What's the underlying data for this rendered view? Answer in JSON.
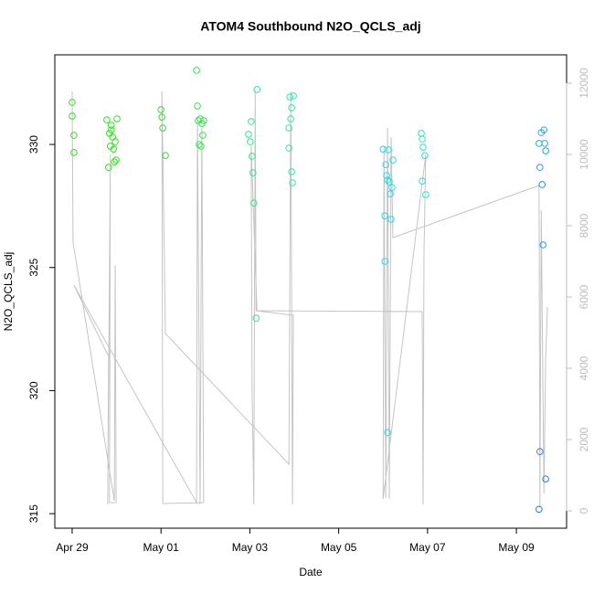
{
  "chart_data": {
    "type": "scatter",
    "title": "ATOM4 Southbound N2O_QCLS_adj",
    "xlabel": "Date",
    "ylabel": "N2O_QCLS_adj",
    "xlim": [
      -0.39,
      11.13
    ],
    "ylim": [
      314.41,
      333.64
    ],
    "y2lim": [
      -487,
      12795
    ],
    "xticks": [
      {
        "value": 0,
        "label": "Apr 29"
      },
      {
        "value": 2,
        "label": "May 01"
      },
      {
        "value": 4,
        "label": "May 03"
      },
      {
        "value": 6,
        "label": "May 05"
      },
      {
        "value": 8,
        "label": "May 07"
      },
      {
        "value": 10,
        "label": "May 09"
      }
    ],
    "yticks": [
      315,
      320,
      325,
      330
    ],
    "y2ticks": [
      0,
      2000,
      4000,
      6000,
      8000,
      10000,
      12000
    ],
    "y2color": "#bdbdbd",
    "series": [
      {
        "type": "line",
        "axis": "y2",
        "color": "#c4c4c4",
        "x": [
          0.0,
          0.02,
          0.95,
          0.97,
          0.99,
          0.84,
          0.86,
          0.8,
          0.82,
          0.04,
          2.8,
          2.82,
          2.88,
          2.92,
          2.96,
          2.04,
          2.02,
          2.1,
          4.88,
          4.92,
          4.96,
          4.98,
          4.14,
          4.12,
          4.09,
          4.05,
          4.03,
          4.16,
          7.88,
          7.9,
          7.92,
          7.96,
          7.0,
          7.02,
          7.06,
          7.1,
          7.14,
          7.18,
          7.22,
          10.51,
          10.53,
          10.56,
          10.62,
          10.66,
          10.7
        ],
        "values": [
          11770,
          7539,
          282,
          6897,
          231,
          231,
          9999,
          179,
          4333,
          6333,
          231,
          11000,
          179,
          10743,
          231,
          205,
          11770,
          4974,
          1308,
          11770,
          179,
          5487,
          5615,
          11795,
          179,
          3461,
          10230,
          5615,
          5590,
          179,
          7205,
          10000,
          333,
          10230,
          359,
          10743,
          333,
          10487,
          7666,
          9128,
          102,
          8435,
          487,
          4333,
          5717
        ]
      },
      {
        "type": "scatter",
        "x": [
          0.0,
          0.0,
          0.04,
          0.04,
          0.78,
          0.82,
          0.84,
          0.86,
          0.88,
          0.91,
          0.93,
          0.95,
          0.97,
          0.99,
          1.01,
          0.88,
          2.0,
          2.02,
          2.04,
          2.1,
          2.8,
          2.82,
          2.84,
          2.86,
          2.88,
          2.9,
          2.92,
          2.94,
          2.96,
          3.97,
          4.01,
          4.03,
          4.05,
          4.07,
          4.09,
          4.14,
          4.16,
          4.88,
          4.9,
          4.92,
          4.94,
          4.96,
          4.98,
          4.94,
          4.88,
          7.0,
          7.04,
          7.04,
          7.06,
          7.08,
          7.1,
          7.12,
          7.14,
          7.16,
          7.18,
          7.2,
          7.22,
          7.1,
          7.86,
          7.88,
          7.9,
          7.94,
          7.88,
          7.96,
          10.51,
          10.53,
          10.56,
          10.58,
          10.6,
          10.62,
          10.64,
          10.66,
          10.53,
          10.66,
          10.51
        ],
        "values": [
          331.71,
          331.15,
          330.37,
          329.67,
          331.0,
          329.07,
          330.45,
          329.93,
          330.78,
          330.3,
          329.81,
          329.29,
          330.11,
          329.37,
          331.04,
          330.59,
          331.41,
          331.11,
          330.67,
          329.55,
          333.01,
          331.56,
          330.97,
          330.0,
          331.04,
          329.93,
          330.85,
          330.37,
          330.97,
          330.41,
          330.11,
          330.93,
          329.52,
          328.85,
          327.62,
          322.94,
          332.23,
          330.67,
          331.93,
          331.04,
          328.89,
          328.44,
          331.97,
          331.49,
          329.85,
          329.81,
          325.25,
          327.1,
          329.18,
          328.74,
          318.3,
          329.78,
          328.48,
          327.99,
          326.96,
          328.25,
          329.37,
          328.55,
          330.45,
          330.22,
          329.89,
          329.55,
          328.51,
          327.96,
          330.04,
          329.07,
          330.48,
          328.37,
          325.92,
          330.59,
          330.04,
          329.74,
          317.52,
          316.41,
          315.18
        ],
        "colors": [
          "#33dd22",
          "#33dd22",
          "#33dd22",
          "#33dd22",
          "#33dd22",
          "#33dd22",
          "#33dd22",
          "#33dd22",
          "#33dd22",
          "#33dd22",
          "#33dd22",
          "#33dd22",
          "#33dd22",
          "#33dd22",
          "#33dd22",
          "#33dd22",
          "#33dd33",
          "#33dd33",
          "#33dd33",
          "#33dd33",
          "#33e64d",
          "#33e64d",
          "#33e64d",
          "#33e64d",
          "#33e64d",
          "#33e64d",
          "#33e64d",
          "#33e64d",
          "#33e64d",
          "#2ee88a",
          "#2ee88a",
          "#2ee88a",
          "#2ee88a",
          "#2ee88a",
          "#2ee88a",
          "#2ee88a",
          "#2ee88a",
          "#2ee8b0",
          "#2ee8b0",
          "#2ee8b0",
          "#2ee8b0",
          "#2ee8b0",
          "#2ee8b0",
          "#2ee8b0",
          "#2ee8b0",
          "#2ad8e0",
          "#2ad8e0",
          "#2ad8e0",
          "#2ad8e0",
          "#2ad8e0",
          "#2ad8e0",
          "#2ad8e0",
          "#2ad8e0",
          "#2ad8e0",
          "#2ad8e0",
          "#2ad8e0",
          "#2ad8e0",
          "#2ad8e0",
          "#2ae0d0",
          "#2ae0d0",
          "#2ae0d0",
          "#2ae0d0",
          "#2ae0d0",
          "#2ae0d0",
          "#28a8e8",
          "#2898e6",
          "#28a8e8",
          "#2890e4",
          "#28a0e6",
          "#28a8e8",
          "#28a8e8",
          "#28a0e6",
          "#2880dd",
          "#2880dd",
          "#2878da"
        ]
      }
    ]
  }
}
